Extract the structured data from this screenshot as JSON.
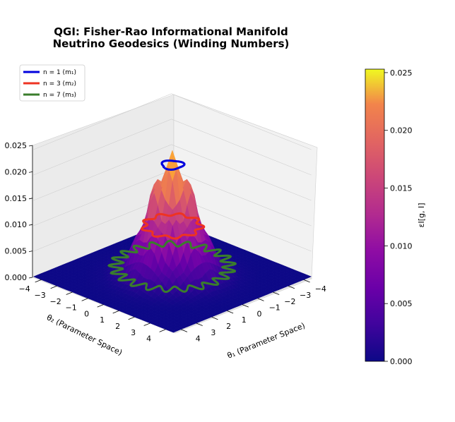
{
  "chart_data": {
    "type": "surface3d",
    "title": "QGI: Fisher-Rao Informational Manifold",
    "subtitle": "Neutrino Geodesics (Winding Numbers)",
    "xlabel": "θ₁ (Parameter Space)",
    "ylabel": "θ₂ (Parameter Space)",
    "zlabel": "",
    "x_ticks": [
      "−4",
      "−3",
      "−2",
      "−1",
      "0",
      "1",
      "2",
      "3",
      "4"
    ],
    "y_ticks": [
      "−4",
      "−3",
      "−2",
      "−1",
      "0",
      "1",
      "2",
      "3",
      "4"
    ],
    "z_ticks": [
      "0.000",
      "0.005",
      "0.010",
      "0.015",
      "0.020",
      "0.025"
    ],
    "xlim": [
      -4.5,
      4.5
    ],
    "ylim": [
      -4.5,
      4.5
    ],
    "zlim": [
      0,
      0.025
    ],
    "surface": {
      "function": "0.022 * exp(-(x^2+y^2)/2.4) * (1 + 0.18*sin(5x)*sin(5y))",
      "colormap": "plasma",
      "peak": 0.025
    },
    "colorbar": {
      "label": "εI[g, I]",
      "ticks": [
        "0.000",
        "0.005",
        "0.010",
        "0.015",
        "0.020",
        "0.025"
      ],
      "range": [
        0,
        0.0253
      ]
    },
    "series": [
      {
        "name": "n = 1 (m₁)",
        "color": "#0000dd",
        "winding": 1,
        "radius": 0.5,
        "z": 0.022
      },
      {
        "name": "n = 3 (m₂)",
        "color": "#ee3322",
        "winding": 3,
        "radius": 1.3,
        "z": 0.01
      },
      {
        "name": "n = 7 (m₃)",
        "color": "#3a7d2c",
        "winding": 7,
        "radius": 2.6,
        "z": 0.002
      }
    ],
    "legend": "top-left",
    "grid": true
  }
}
